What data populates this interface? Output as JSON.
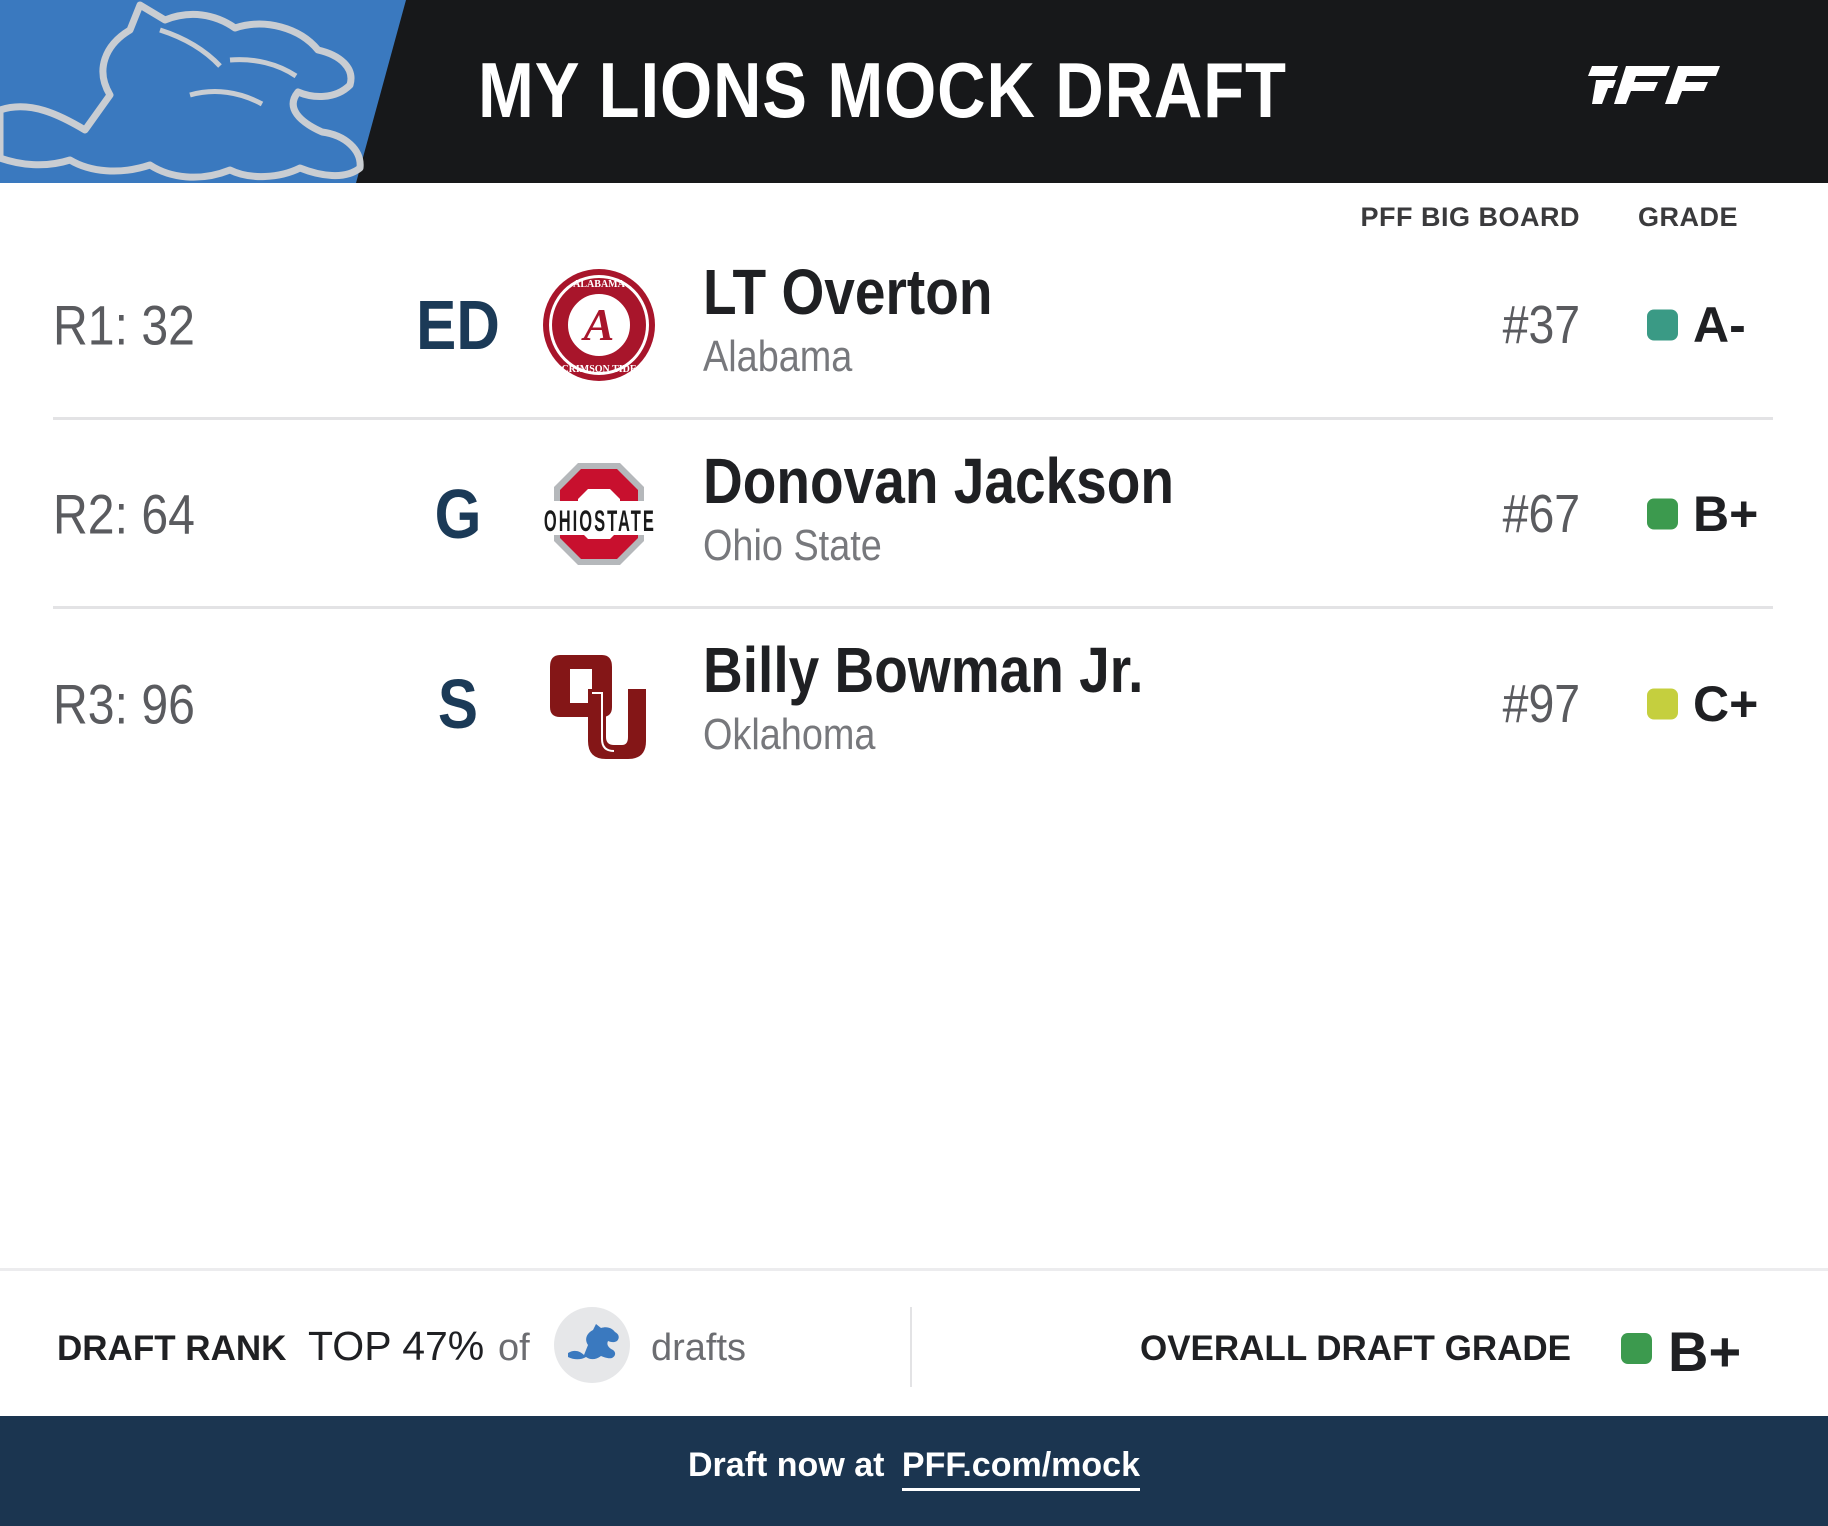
{
  "header": {
    "title": "MY LIONS MOCK DRAFT",
    "brand": "PFF",
    "team_logo": "lions-logo-icon",
    "colors": {
      "background": "#17181a",
      "team_blue": "#3a79bf"
    }
  },
  "columns": {
    "big_board": "PFF BIG BOARD",
    "grade": "GRADE"
  },
  "picks": [
    {
      "pick": "R1: 32",
      "position": "ED",
      "name": "LT Overton",
      "school": "Alabama",
      "school_logo": "alabama-logo-icon",
      "big_board": "#37",
      "grade": "A-",
      "grade_color": "#3a9a85"
    },
    {
      "pick": "R2: 64",
      "position": "G",
      "name": "Donovan Jackson",
      "school": "Ohio State",
      "school_logo": "ohio-state-logo-icon",
      "big_board": "#67",
      "grade": "B+",
      "grade_color": "#3c9a4e"
    },
    {
      "pick": "R3: 96",
      "position": "S",
      "name": "Billy Bowman Jr.",
      "school": "Oklahoma",
      "school_logo": "oklahoma-logo-icon",
      "big_board": "#97",
      "grade": "C+",
      "grade_color": "#c5cf3e"
    }
  ],
  "summary": {
    "draft_rank_label": "DRAFT RANK",
    "draft_rank_value": "TOP 47%",
    "of_text": "of",
    "drafts_text": "drafts",
    "overall_label": "OVERALL DRAFT GRADE",
    "overall_grade": "B+",
    "overall_grade_color": "#3c9a4e"
  },
  "footer": {
    "text": "Draft now at",
    "link": "PFF.com/mock",
    "background": "#1b3550"
  }
}
